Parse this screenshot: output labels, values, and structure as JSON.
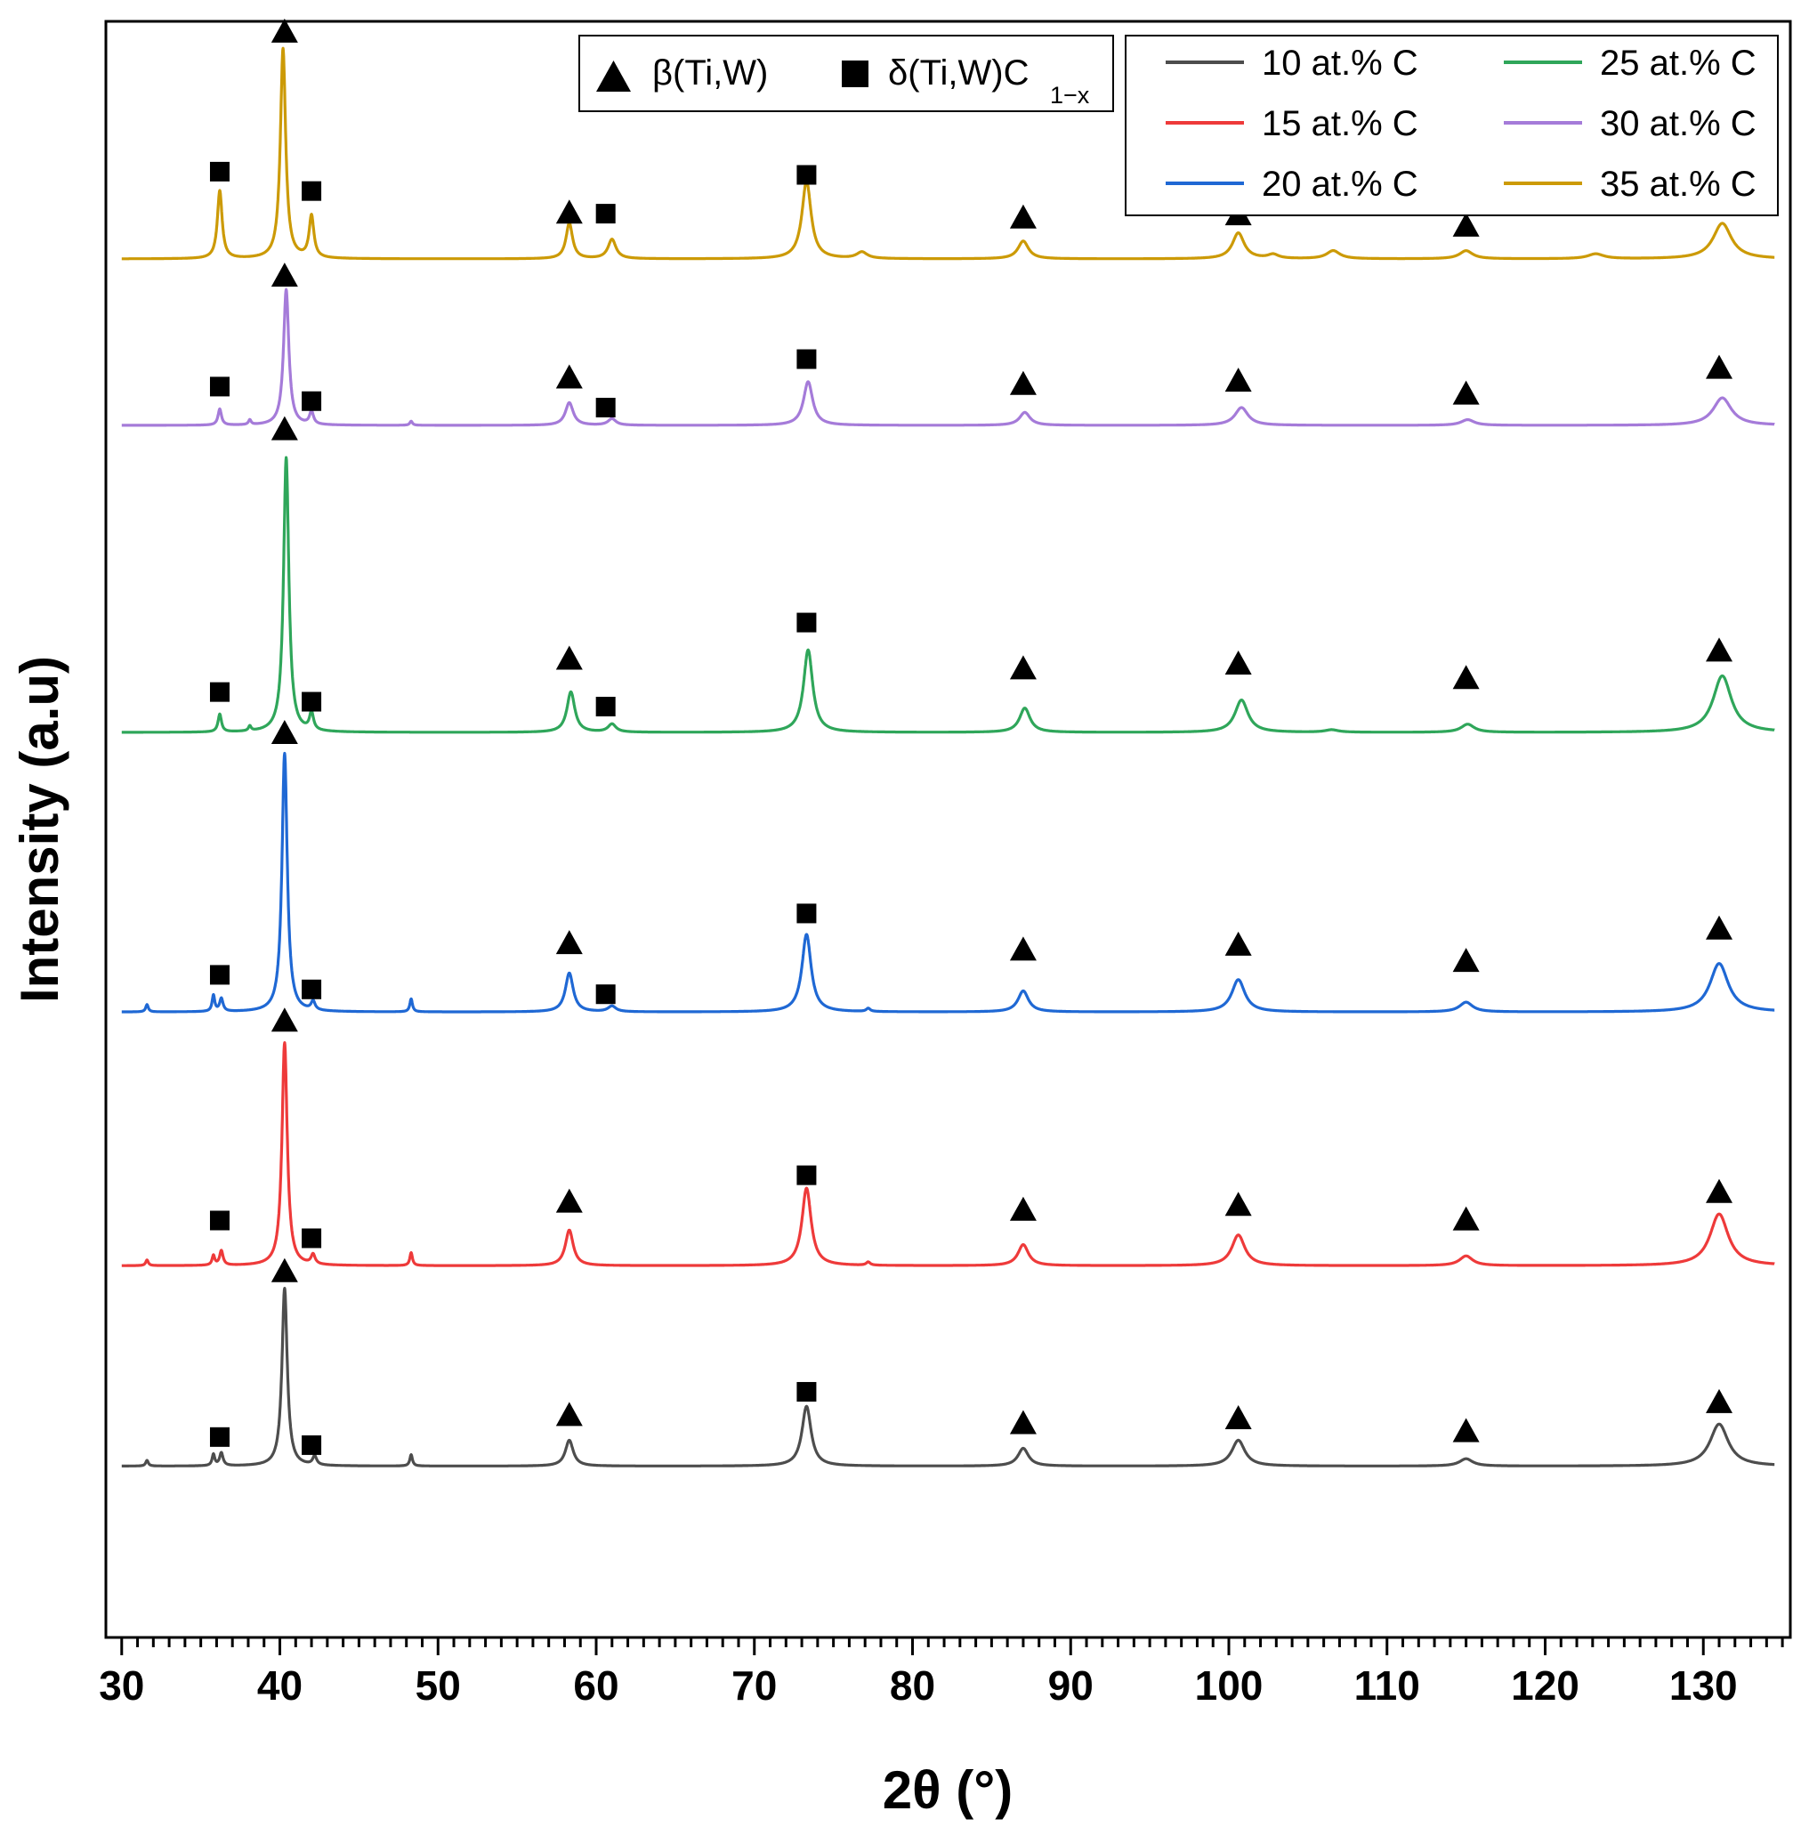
{
  "chart_data": {
    "type": "line",
    "title": "",
    "xlabel": "2θ (°)",
    "ylabel": "Intensity (a.u)",
    "xlim": [
      29,
      135.5
    ],
    "ylim": [
      0,
      100
    ],
    "x_ticks": [
      "30",
      "40",
      "50",
      "60",
      "70",
      "80",
      "90",
      "100",
      "110",
      "120",
      "130"
    ],
    "x_tick_values": [
      30,
      40,
      50,
      60,
      70,
      80,
      90,
      100,
      110,
      120,
      130
    ],
    "x_minor_step": 1,
    "y_ticks_shown": false,
    "grid": false,
    "phase_legend": {
      "position": "top-center",
      "items": [
        {
          "marker": "triangle",
          "label": "β(Ti,W)",
          "sub": ""
        },
        {
          "marker": "square",
          "label": "δ(Ti,W)C",
          "sub": "1−x"
        }
      ]
    },
    "series_legend": {
      "position": "top-right",
      "columns": 2
    },
    "series": [
      {
        "name": "10 at.% C",
        "color": "#4d4d4d",
        "baseline": 10.6,
        "peaks": [
          [
            31.6,
            0.35,
            0.1
          ],
          [
            35.8,
            0.7,
            0.1
          ],
          [
            36.3,
            0.8,
            0.13
          ],
          [
            40.3,
            11,
            0.2
          ],
          [
            42.2,
            0.55,
            0.15
          ],
          [
            48.3,
            0.7,
            0.1
          ],
          [
            58.3,
            1.6,
            0.3
          ],
          [
            73.3,
            3.7,
            0.35
          ],
          [
            87.0,
            1.1,
            0.4
          ],
          [
            100.6,
            1.6,
            0.5
          ],
          [
            115.0,
            0.45,
            0.5
          ],
          [
            131.0,
            2.6,
            0.7
          ]
        ],
        "markers": [
          {
            "x": 36.2,
            "y": 12.4,
            "type": "square"
          },
          {
            "x": 40.3,
            "y": 22.7,
            "type": "triangle"
          },
          {
            "x": 42.0,
            "y": 11.9,
            "type": "square"
          },
          {
            "x": 58.3,
            "y": 13.8,
            "type": "triangle"
          },
          {
            "x": 73.3,
            "y": 15.2,
            "type": "square"
          },
          {
            "x": 87.0,
            "y": 13.3,
            "type": "triangle"
          },
          {
            "x": 100.6,
            "y": 13.6,
            "type": "triangle"
          },
          {
            "x": 115.0,
            "y": 12.8,
            "type": "triangle"
          },
          {
            "x": 131.0,
            "y": 14.6,
            "type": "triangle"
          }
        ]
      },
      {
        "name": "15 at.% C",
        "color": "#ee3a3a",
        "baseline": 23.0,
        "peaks": [
          [
            31.6,
            0.35,
            0.1
          ],
          [
            35.8,
            0.6,
            0.1
          ],
          [
            36.3,
            0.9,
            0.13
          ],
          [
            40.3,
            13.8,
            0.2
          ],
          [
            42.1,
            0.6,
            0.15
          ],
          [
            48.3,
            0.8,
            0.1
          ],
          [
            58.3,
            2.2,
            0.3
          ],
          [
            73.3,
            4.8,
            0.35
          ],
          [
            77.2,
            0.2,
            0.15
          ],
          [
            87.0,
            1.3,
            0.4
          ],
          [
            100.6,
            1.9,
            0.5
          ],
          [
            115.0,
            0.6,
            0.5
          ],
          [
            131.0,
            3.2,
            0.7
          ]
        ],
        "markers": [
          {
            "x": 36.2,
            "y": 25.8,
            "type": "square"
          },
          {
            "x": 40.3,
            "y": 38.2,
            "type": "triangle"
          },
          {
            "x": 42.0,
            "y": 24.7,
            "type": "square"
          },
          {
            "x": 58.3,
            "y": 27.0,
            "type": "triangle"
          },
          {
            "x": 73.3,
            "y": 28.6,
            "type": "square"
          },
          {
            "x": 87.0,
            "y": 26.5,
            "type": "triangle"
          },
          {
            "x": 100.6,
            "y": 26.8,
            "type": "triangle"
          },
          {
            "x": 115.0,
            "y": 25.9,
            "type": "triangle"
          },
          {
            "x": 131.0,
            "y": 27.6,
            "type": "triangle"
          }
        ]
      },
      {
        "name": "20 at.% C",
        "color": "#1f68d4",
        "baseline": 38.7,
        "peaks": [
          [
            31.6,
            0.45,
            0.1
          ],
          [
            35.8,
            1.0,
            0.1
          ],
          [
            36.3,
            0.8,
            0.13
          ],
          [
            40.3,
            16.0,
            0.2
          ],
          [
            42.1,
            0.55,
            0.15
          ],
          [
            48.3,
            0.8,
            0.1
          ],
          [
            58.3,
            2.4,
            0.3
          ],
          [
            61.0,
            0.35,
            0.3
          ],
          [
            73.3,
            4.8,
            0.35
          ],
          [
            77.2,
            0.2,
            0.15
          ],
          [
            87.0,
            1.3,
            0.4
          ],
          [
            100.6,
            2.0,
            0.5
          ],
          [
            115.0,
            0.6,
            0.5
          ],
          [
            131.0,
            3.0,
            0.7
          ]
        ],
        "markers": [
          {
            "x": 36.2,
            "y": 41.0,
            "type": "square"
          },
          {
            "x": 40.3,
            "y": 56.0,
            "type": "triangle"
          },
          {
            "x": 42.0,
            "y": 40.1,
            "type": "square"
          },
          {
            "x": 58.3,
            "y": 43.0,
            "type": "triangle"
          },
          {
            "x": 60.6,
            "y": 39.8,
            "type": "square"
          },
          {
            "x": 73.3,
            "y": 44.8,
            "type": "square"
          },
          {
            "x": 87.0,
            "y": 42.6,
            "type": "triangle"
          },
          {
            "x": 100.6,
            "y": 42.9,
            "type": "triangle"
          },
          {
            "x": 115.0,
            "y": 41.9,
            "type": "triangle"
          },
          {
            "x": 131.0,
            "y": 43.9,
            "type": "triangle"
          }
        ]
      },
      {
        "name": "25 at.% C",
        "color": "#2fa65a",
        "baseline": 56.0,
        "peaks": [
          [
            36.2,
            1.1,
            0.13
          ],
          [
            38.1,
            0.3,
            0.1
          ],
          [
            40.4,
            17.0,
            0.2
          ],
          [
            42.0,
            1.1,
            0.15
          ],
          [
            58.4,
            2.5,
            0.3
          ],
          [
            61.0,
            0.5,
            0.3
          ],
          [
            73.4,
            5.1,
            0.35
          ],
          [
            87.1,
            1.5,
            0.4
          ],
          [
            100.8,
            2.0,
            0.5
          ],
          [
            106.5,
            0.15,
            0.5
          ],
          [
            115.1,
            0.5,
            0.5
          ],
          [
            131.2,
            3.5,
            0.7
          ]
        ],
        "markers": [
          {
            "x": 36.2,
            "y": 58.5,
            "type": "square"
          },
          {
            "x": 40.3,
            "y": 74.8,
            "type": "triangle"
          },
          {
            "x": 42.0,
            "y": 57.9,
            "type": "square"
          },
          {
            "x": 58.3,
            "y": 60.6,
            "type": "triangle"
          },
          {
            "x": 60.6,
            "y": 57.6,
            "type": "square"
          },
          {
            "x": 73.3,
            "y": 62.8,
            "type": "square"
          },
          {
            "x": 87.0,
            "y": 60.0,
            "type": "triangle"
          },
          {
            "x": 100.6,
            "y": 60.3,
            "type": "triangle"
          },
          {
            "x": 115.0,
            "y": 59.4,
            "type": "triangle"
          },
          {
            "x": 131.0,
            "y": 61.1,
            "type": "triangle"
          }
        ]
      },
      {
        "name": "30 at.% C",
        "color": "#a57bd9",
        "baseline": 75.0,
        "peaks": [
          [
            36.2,
            1.0,
            0.13
          ],
          [
            38.1,
            0.3,
            0.1
          ],
          [
            40.4,
            8.4,
            0.2
          ],
          [
            42.0,
            0.8,
            0.15
          ],
          [
            48.3,
            0.25,
            0.1
          ],
          [
            58.3,
            1.4,
            0.3
          ],
          [
            61.0,
            0.4,
            0.3
          ],
          [
            73.4,
            2.7,
            0.35
          ],
          [
            87.1,
            0.8,
            0.4
          ],
          [
            100.8,
            1.1,
            0.5
          ],
          [
            115.1,
            0.35,
            0.5
          ],
          [
            131.2,
            1.7,
            0.7
          ]
        ],
        "markers": [
          {
            "x": 36.2,
            "y": 77.4,
            "type": "square"
          },
          {
            "x": 40.3,
            "y": 84.3,
            "type": "triangle"
          },
          {
            "x": 42.0,
            "y": 76.5,
            "type": "square"
          },
          {
            "x": 58.3,
            "y": 78.0,
            "type": "triangle"
          },
          {
            "x": 60.6,
            "y": 76.1,
            "type": "square"
          },
          {
            "x": 73.3,
            "y": 79.1,
            "type": "square"
          },
          {
            "x": 87.0,
            "y": 77.6,
            "type": "triangle"
          },
          {
            "x": 100.6,
            "y": 77.8,
            "type": "triangle"
          },
          {
            "x": 115.0,
            "y": 77.0,
            "type": "triangle"
          },
          {
            "x": 131.0,
            "y": 78.6,
            "type": "triangle"
          }
        ]
      },
      {
        "name": "35 at.% C",
        "color": "#cc9a06",
        "baseline": 85.3,
        "peaks": [
          [
            36.2,
            4.2,
            0.18
          ],
          [
            40.2,
            13.0,
            0.2
          ],
          [
            42.0,
            2.6,
            0.18
          ],
          [
            58.3,
            2.2,
            0.25
          ],
          [
            61.0,
            1.2,
            0.3
          ],
          [
            73.3,
            4.8,
            0.35
          ],
          [
            76.8,
            0.4,
            0.4
          ],
          [
            87.0,
            1.1,
            0.4
          ],
          [
            100.6,
            1.6,
            0.45
          ],
          [
            102.8,
            0.25,
            0.4
          ],
          [
            106.6,
            0.5,
            0.5
          ],
          [
            115.0,
            0.5,
            0.5
          ],
          [
            123.2,
            0.3,
            0.6
          ],
          [
            131.2,
            2.2,
            0.7
          ]
        ],
        "markers": [
          {
            "x": 36.2,
            "y": 90.7,
            "type": "square"
          },
          {
            "x": 40.3,
            "y": 99.4,
            "type": "triangle"
          },
          {
            "x": 42.0,
            "y": 89.5,
            "type": "square"
          },
          {
            "x": 58.3,
            "y": 88.2,
            "type": "triangle"
          },
          {
            "x": 60.6,
            "y": 88.1,
            "type": "square"
          },
          {
            "x": 73.3,
            "y": 90.5,
            "type": "square"
          },
          {
            "x": 87.0,
            "y": 87.9,
            "type": "triangle"
          },
          {
            "x": 100.6,
            "y": 88.1,
            "type": "triangle"
          },
          {
            "x": 115.0,
            "y": 87.4,
            "type": "triangle"
          },
          {
            "x": 131.0,
            "y": 89.1,
            "type": "triangle"
          }
        ]
      }
    ]
  }
}
